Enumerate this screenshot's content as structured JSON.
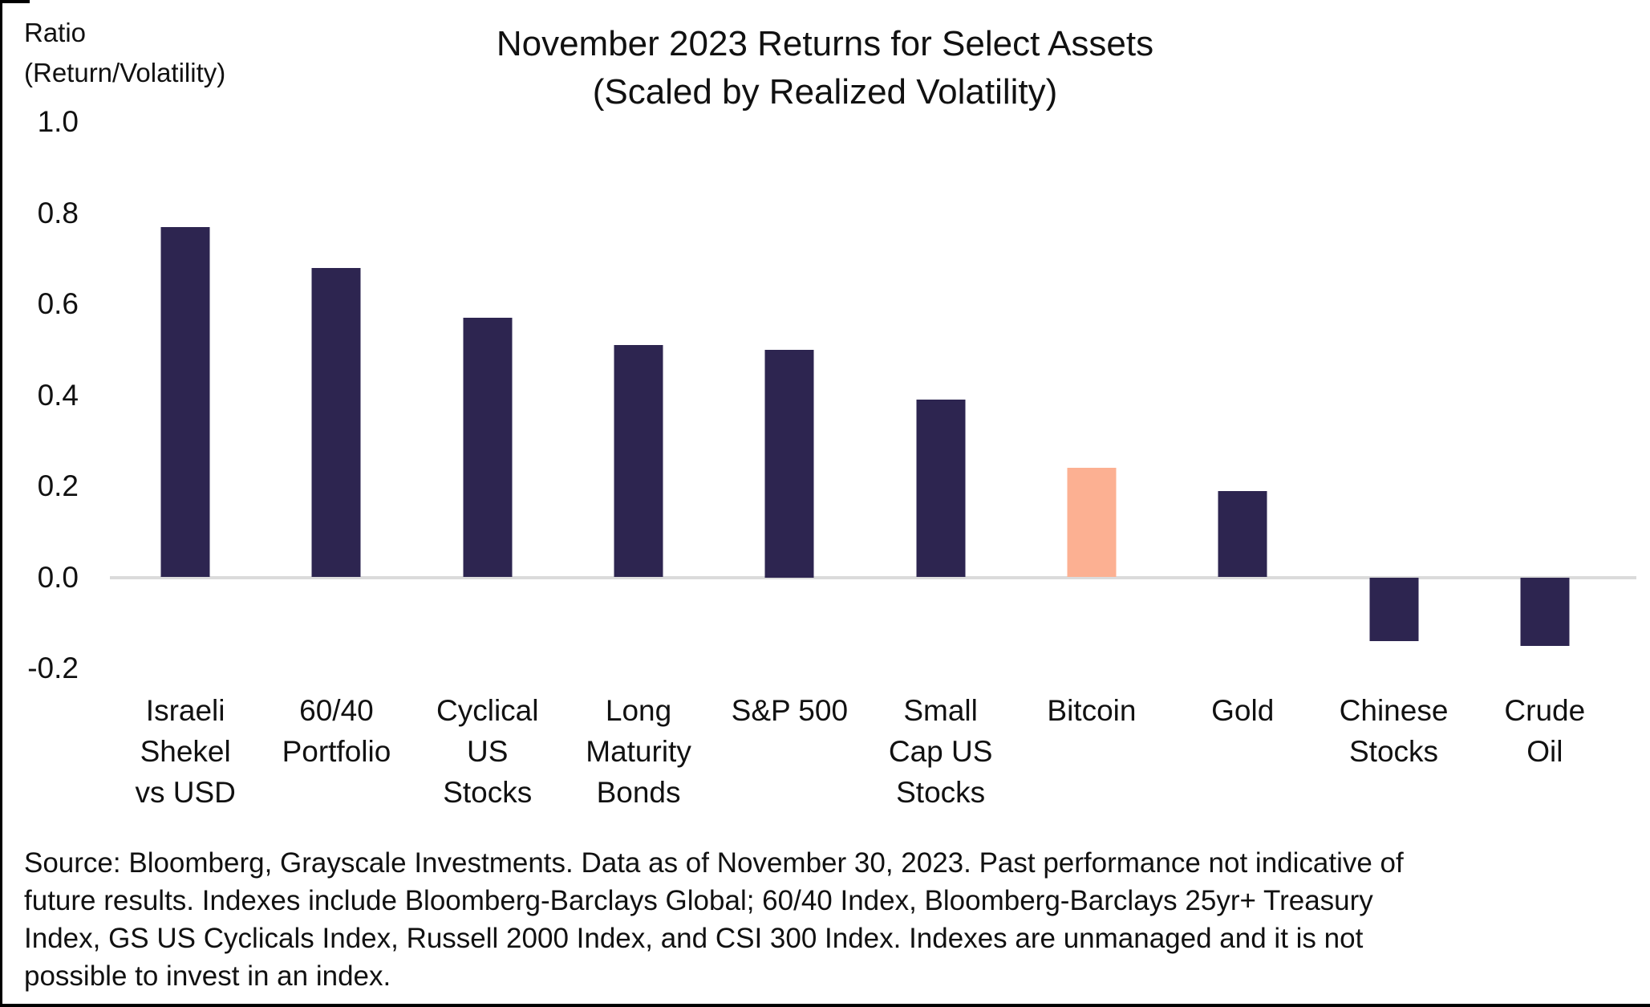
{
  "title": {
    "text": "November 2023 Returns for Select Assets\n(Scaled by Realized Volatility)"
  },
  "y_axis": {
    "unit_label": "Ratio\n(Return/Volatility)",
    "tick_labels": [
      "1.0",
      "0.8",
      "0.6",
      "0.4",
      "0.2",
      "0.0",
      "-0.2"
    ]
  },
  "chart_data": {
    "type": "bar",
    "title": "November 2023 Returns for Select Assets (Scaled by Realized Volatility)",
    "ylabel": "Ratio (Return/Volatility)",
    "xlabel": "",
    "categories": [
      "Israeli Shekel vs USD",
      "60/40 Portfolio",
      "Cyclical US Stocks",
      "Long Maturity Bonds",
      "S&P 500",
      "Small Cap US Stocks",
      "Bitcoin",
      "Gold",
      "Chinese Stocks",
      "Crude Oil"
    ],
    "values": [
      0.77,
      0.68,
      0.57,
      0.51,
      0.5,
      0.39,
      0.24,
      0.19,
      -0.14,
      -0.15
    ],
    "category_display": [
      "Israeli\nShekel\nvs USD",
      "60/40\nPortfolio",
      "Cyclical\nUS\nStocks",
      "Long\nMaturity\nBonds",
      "S&P 500",
      "Small\nCap US\nStocks",
      "Bitcoin",
      "Gold",
      "Chinese\nStocks",
      "Crude\nOil"
    ],
    "ylim": [
      -0.2,
      1.0
    ],
    "yticks": [
      1.0,
      0.8,
      0.6,
      0.4,
      0.2,
      0.0,
      -0.2
    ],
    "grid": "zero-baseline-only",
    "legend": "none",
    "highlight_index": 6,
    "highlight_category": "Bitcoin"
  },
  "colors": {
    "bar_default": "#2D2550",
    "bar_highlight": "#FCB092",
    "zero_line": "#DBDBDB",
    "text": "#111111",
    "frame": "#000000"
  },
  "footer": {
    "lines": [
      "Source: Bloomberg, Grayscale Investments. Data as of November 30, 2023. Past performance not indicative of",
      "future results. Indexes include Bloomberg-Barclays Global; 60/40 Index, Bloomberg-Barclays 25yr+ Treasury",
      "Index, GS US Cyclicals Index, Russell 2000 Index, and CSI 300 Index. Indexes are unmanaged and it is not",
      "possible to invest in an index."
    ]
  }
}
